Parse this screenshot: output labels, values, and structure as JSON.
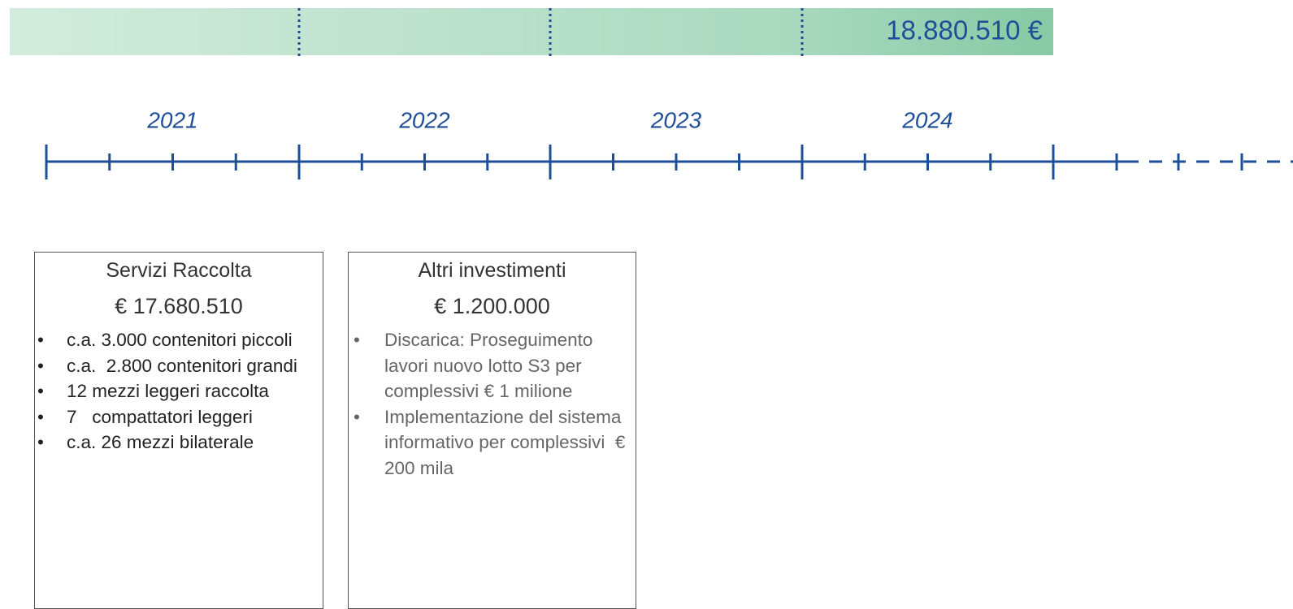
{
  "banner": {
    "total": "18.880.510 €"
  },
  "timeline": {
    "years": [
      "2021",
      "2022",
      "2023",
      "2024"
    ]
  },
  "boxes": [
    {
      "title": "Servizi Raccolta",
      "amount": "€ 17.680.510",
      "items": [
        "c.a. 3.000 contenitori piccoli",
        "c.a.  2.800 contenitori grandi",
        "12 mezzi leggeri raccolta",
        "7   compattatori leggeri",
        "c.a. 26 mezzi bilaterale"
      ]
    },
    {
      "title": "Altri investimenti",
      "amount": "€ 1.200.000",
      "items": [
        "Discarica: Proseguimento lavori nuovo lotto S3 per complessivi € 1 milione",
        "Implementazione del sistema informativo per complessivi  € 200 mila"
      ]
    }
  ]
}
